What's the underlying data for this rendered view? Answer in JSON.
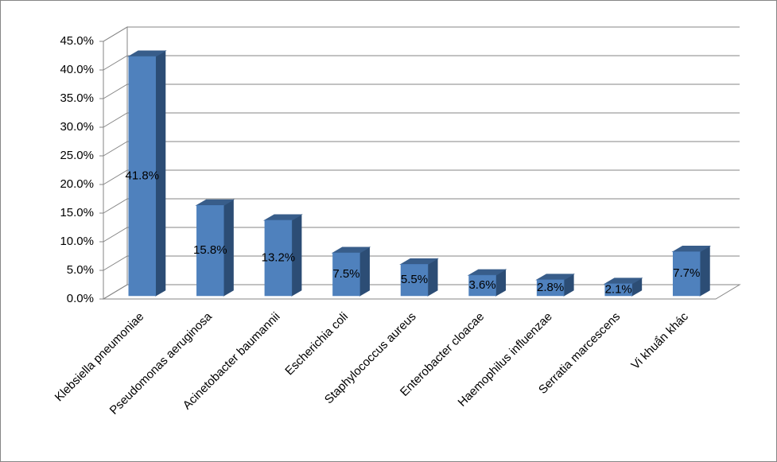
{
  "chart_data": {
    "type": "bar3d",
    "categories": [
      "Klebsiella pneumoniae",
      "Pseudomonas aeruginosa",
      "Acinetobacter baumannii",
      "Escherichia coli",
      "Staphylococcus aureus",
      "Enterobacter cloacae",
      "Haemophilus influenzae",
      "Serratia marcescens",
      "Vi khuẩn khác"
    ],
    "values": [
      41.8,
      15.8,
      13.2,
      7.5,
      5.5,
      3.6,
      2.8,
      2.1,
      7.7
    ],
    "value_labels": [
      "41.8%",
      "15.8%",
      "13.2%",
      "7.5%",
      "5.5%",
      "3.6%",
      "2.8%",
      "2.1%",
      "7.7%"
    ],
    "color": "#4f81bd",
    "ylim": [
      0,
      45
    ],
    "yticks": [
      {
        "value": 0,
        "label": "0.0%"
      },
      {
        "value": 5,
        "label": "5.0%"
      },
      {
        "value": 10,
        "label": "10.0%"
      },
      {
        "value": 15,
        "label": "15.0%"
      },
      {
        "value": 20,
        "label": "20.0%"
      },
      {
        "value": 25,
        "label": "25.0%"
      },
      {
        "value": 30,
        "label": "30.0%"
      },
      {
        "value": 35,
        "label": "35.0%"
      },
      {
        "value": 40,
        "label": "40.0%"
      },
      {
        "value": 45,
        "label": "45.0%"
      }
    ],
    "grid": true
  }
}
